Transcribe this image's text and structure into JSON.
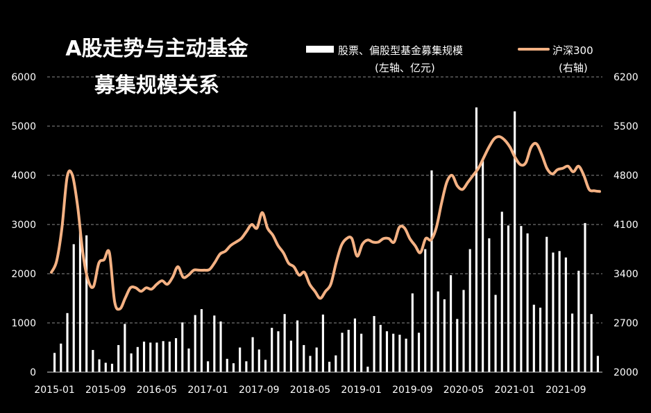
{
  "chart_data": {
    "type": "bar+line",
    "title_lines": [
      "A股走势与主动基金",
      "募集规模关系"
    ],
    "legend": [
      {
        "label_lines": [
          "股票、偏股型基金募集规模",
          "(左轴、亿元)"
        ],
        "symbol": "bar",
        "color": "#ffffff"
      },
      {
        "label_lines": [
          "沪深300",
          "(右轴)"
        ],
        "symbol": "line",
        "color": "#f4b183"
      }
    ],
    "x_tick_labels": [
      "2015-01",
      "2015-09",
      "2016-05",
      "2017-01",
      "2017-09",
      "2018-05",
      "2019-01",
      "2019-09",
      "2020-05",
      "2021-01",
      "2021-09"
    ],
    "left_axis": {
      "ticks": [
        "0",
        "1000",
        "2000",
        "3000",
        "4000",
        "5000",
        "6000"
      ],
      "min": 0,
      "max": 6000
    },
    "right_axis": {
      "ticks": [
        "2000",
        "2700",
        "3400",
        "4100",
        "4800",
        "5500",
        "6200"
      ],
      "min": 2000,
      "max": 6200
    },
    "grid": "horizontal dashed",
    "bar_color": "#ffffff",
    "line_color": "#f4b183",
    "bars": [
      390,
      580,
      1200,
      2600,
      2950,
      2780,
      450,
      260,
      190,
      170,
      550,
      980,
      380,
      510,
      620,
      600,
      600,
      630,
      620,
      690,
      1010,
      480,
      1160,
      1280,
      220,
      1150,
      1030,
      270,
      180,
      500,
      220,
      710,
      460,
      250,
      900,
      830,
      1180,
      640,
      1050,
      550,
      330,
      500,
      1170,
      210,
      340,
      800,
      860,
      1090,
      780,
      110,
      1140,
      960,
      830,
      780,
      760,
      680,
      1600,
      800,
      2500,
      4100,
      1640,
      1480,
      1970,
      1080,
      1670,
      2500,
      5380,
      4290,
      2720,
      1570,
      3260,
      2980,
      5300,
      2970,
      2820,
      1370,
      1310,
      2750,
      2430,
      2460,
      2330,
      1190,
      2060,
      3030,
      1180,
      330
    ],
    "line": [
      3420,
      3580,
      4050,
      4780,
      4800,
      4350,
      3680,
      3300,
      3220,
      3550,
      3600,
      3700,
      3000,
      2900,
      3050,
      3200,
      3200,
      3150,
      3200,
      3180,
      3250,
      3300,
      3250,
      3350,
      3500,
      3350,
      3380,
      3450,
      3450,
      3450,
      3460,
      3560,
      3680,
      3720,
      3800,
      3850,
      3900,
      4000,
      4100,
      4050,
      4270,
      4050,
      3950,
      3800,
      3700,
      3550,
      3500,
      3380,
      3420,
      3250,
      3150,
      3050,
      3150,
      3250,
      3550,
      3800,
      3900,
      3900,
      3650,
      3820,
      3880,
      3850,
      3850,
      3900,
      3900,
      3850,
      4060,
      4050,
      3900,
      3800,
      3700,
      3900,
      3880,
      4050,
      4400,
      4700,
      4800,
      4650,
      4600,
      4700,
      4800,
      4900,
      5050,
      5200,
      5320,
      5350,
      5300,
      5200,
      5050,
      4950,
      4980,
      5200,
      5250,
      5100,
      4900,
      4820,
      4880,
      4900,
      4930,
      4850,
      4930,
      4800,
      4600,
      4580,
      4570
    ]
  }
}
